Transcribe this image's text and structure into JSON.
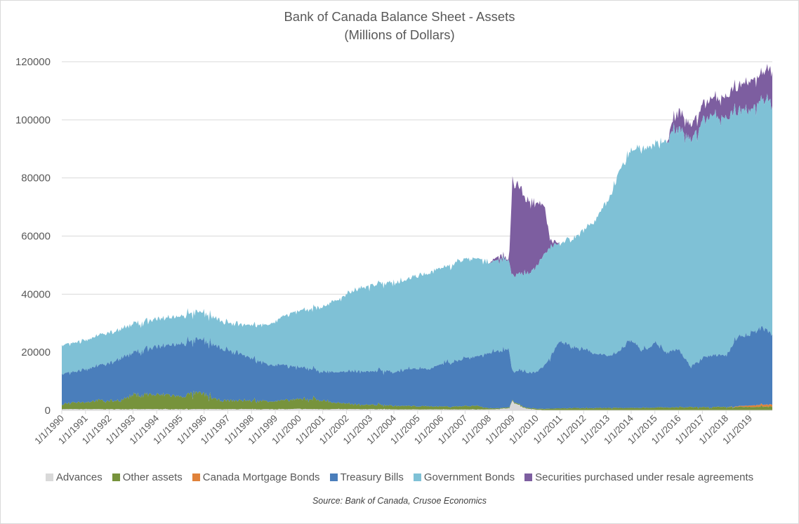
{
  "chart_data": {
    "type": "area",
    "stacked": true,
    "title": "Bank of Canada Balance Sheet - Assets",
    "subtitle": "(Millions of Dollars)",
    "xlabel": "",
    "ylabel": "",
    "ylim": [
      0,
      120000
    ],
    "yticks": [
      0,
      20000,
      40000,
      60000,
      80000,
      100000,
      120000
    ],
    "ytick_labels": [
      "0",
      "20000",
      "40000",
      "60000",
      "80000",
      "100000",
      "120000"
    ],
    "xlim": [
      1990.0,
      2019.95
    ],
    "xtick_labels": [
      "1/1/1990",
      "1/1/1991",
      "1/1/1992",
      "1/1/1993",
      "1/1/1994",
      "1/1/1995",
      "1/1/1996",
      "1/1/1997",
      "1/1/1998",
      "1/1/1999",
      "1/1/2000",
      "1/1/2001",
      "1/1/2002",
      "1/1/2003",
      "1/1/2004",
      "1/1/2005",
      "1/1/2006",
      "1/1/2007",
      "1/1/2008",
      "1/1/2009",
      "1/1/2010",
      "1/1/2011",
      "1/1/2012",
      "1/1/2013",
      "1/1/2014",
      "1/1/2015",
      "1/1/2016",
      "1/1/2017",
      "1/1/2018",
      "1/1/2019"
    ],
    "grid": true,
    "legend_position": "bottom",
    "x": [
      1990.0,
      1990.5,
      1991.0,
      1991.5,
      1992.0,
      1992.5,
      1993.0,
      1993.5,
      1994.0,
      1994.5,
      1995.0,
      1995.5,
      1996.0,
      1996.5,
      1997.0,
      1997.5,
      1998.0,
      1998.5,
      1999.0,
      1999.5,
      2000.0,
      2000.5,
      2001.0,
      2001.5,
      2002.0,
      2002.5,
      2003.0,
      2003.5,
      2004.0,
      2004.5,
      2005.0,
      2005.5,
      2006.0,
      2006.5,
      2007.0,
      2007.5,
      2008.0,
      2008.5,
      2008.85,
      2009.0,
      2009.3,
      2009.6,
      2010.0,
      2010.3,
      2010.6,
      2011.0,
      2011.5,
      2012.0,
      2012.5,
      2013.0,
      2013.5,
      2014.0,
      2014.5,
      2015.0,
      2015.5,
      2015.8,
      2016.0,
      2016.5,
      2017.0,
      2017.5,
      2018.0,
      2018.5,
      2019.0,
      2019.5,
      2019.95
    ],
    "series": [
      {
        "name": "Advances",
        "color": "#d9d9d9",
        "values": [
          400,
          400,
          400,
          400,
          400,
          400,
          400,
          400,
          400,
          400,
          400,
          400,
          400,
          400,
          400,
          400,
          400,
          400,
          400,
          400,
          500,
          400,
          400,
          400,
          400,
          400,
          400,
          400,
          300,
          300,
          300,
          300,
          300,
          300,
          300,
          300,
          300,
          500,
          800,
          3000,
          1500,
          600,
          200,
          100,
          100,
          50,
          50,
          50,
          50,
          50,
          50,
          50,
          50,
          50,
          50,
          50,
          50,
          50,
          50,
          50,
          50,
          50,
          50,
          50,
          50
        ]
      },
      {
        "name": "Other assets",
        "color": "#77933c",
        "values": [
          1800,
          2500,
          2400,
          3000,
          2800,
          3200,
          4800,
          5200,
          4800,
          5000,
          4200,
          5500,
          5200,
          3200,
          2900,
          3000,
          2800,
          2900,
          2800,
          3000,
          3200,
          3600,
          3000,
          2200,
          1800,
          1600,
          1500,
          1500,
          1200,
          1200,
          1100,
          1100,
          1000,
          1000,
          1200,
          1300,
          400,
          300,
          300,
          300,
          300,
          300,
          350,
          400,
          500,
          600,
          700,
          700,
          750,
          800,
          800,
          850,
          850,
          900,
          900,
          950,
          950,
          1000,
          1000,
          1050,
          1050,
          1100,
          1100,
          1150,
          1200
        ]
      },
      {
        "name": "Canada Mortgage Bonds",
        "color": "#e0823a",
        "values": [
          0,
          0,
          0,
          0,
          0,
          0,
          0,
          0,
          0,
          0,
          0,
          0,
          0,
          0,
          0,
          0,
          0,
          0,
          0,
          0,
          0,
          0,
          0,
          0,
          0,
          0,
          0,
          0,
          0,
          0,
          0,
          0,
          0,
          0,
          0,
          0,
          0,
          0,
          0,
          0,
          0,
          0,
          0,
          0,
          0,
          0,
          0,
          0,
          0,
          0,
          0,
          0,
          0,
          0,
          0,
          0,
          0,
          0,
          0,
          0,
          0,
          200,
          500,
          700,
          700
        ]
      },
      {
        "name": "Treasury Bills",
        "color": "#4a7ebb",
        "values": [
          10500,
          10500,
          11500,
          11800,
          13000,
          14500,
          14500,
          15500,
          16500,
          17000,
          18000,
          18200,
          18500,
          18500,
          17500,
          16000,
          14500,
          13000,
          12500,
          11800,
          11000,
          10500,
          9800,
          10500,
          11000,
          11500,
          11500,
          12000,
          11500,
          12500,
          13000,
          13000,
          14500,
          15500,
          16500,
          17000,
          19000,
          19500,
          20000,
          10000,
          12000,
          12000,
          12500,
          14500,
          18000,
          23500,
          21000,
          20500,
          18500,
          18000,
          19500,
          23500,
          19500,
          22500,
          19000,
          20000,
          20000,
          14000,
          17000,
          18000,
          17500,
          24000,
          24500,
          26500,
          24000
        ]
      },
      {
        "name": "Government Bonds",
        "color": "#7fc1d6",
        "values": [
          10000,
          10000,
          10000,
          10500,
          10500,
          10000,
          10000,
          9500,
          9500,
          9500,
          9500,
          9500,
          9500,
          9500,
          9500,
          10000,
          11500,
          13000,
          15000,
          17500,
          19500,
          20500,
          22500,
          24500,
          26500,
          28500,
          29500,
          30000,
          30500,
          31000,
          32000,
          33000,
          33000,
          33500,
          34000,
          34000,
          31000,
          31000,
          31000,
          33000,
          33000,
          34000,
          36000,
          38000,
          38000,
          33500,
          37000,
          41000,
          46000,
          53000,
          62000,
          65000,
          70000,
          68000,
          73000,
          75000,
          76000,
          78000,
          81000,
          83000,
          82000,
          78000,
          77000,
          79000,
          79000
        ]
      },
      {
        "name": "Securities purchased under resale agreements",
        "color": "#7d5ea0",
        "values": [
          0,
          0,
          0,
          0,
          0,
          0,
          0,
          0,
          0,
          0,
          0,
          0,
          0,
          0,
          0,
          0,
          0,
          0,
          0,
          0,
          0,
          0,
          0,
          0,
          0,
          0,
          0,
          0,
          0,
          0,
          0,
          0,
          0,
          0,
          0,
          0,
          0,
          1500,
          0,
          33000,
          30000,
          25000,
          22000,
          18000,
          2000,
          0,
          0,
          0,
          0,
          0,
          0,
          0,
          0,
          0,
          0,
          4000,
          6000,
          5000,
          5500,
          6000,
          7500,
          8500,
          10000,
          9000,
          12000
        ]
      }
    ],
    "annotations": []
  },
  "legend": {
    "items": [
      {
        "label": "Advances",
        "color": "#d9d9d9"
      },
      {
        "label": "Other assets",
        "color": "#77933c"
      },
      {
        "label": "Canada Mortgage Bonds",
        "color": "#e0823a"
      },
      {
        "label": "Treasury Bills",
        "color": "#4a7ebb"
      },
      {
        "label": "Government Bonds",
        "color": "#7fc1d6"
      },
      {
        "label": "Securities purchased under resale agreements",
        "color": "#7d5ea0"
      }
    ]
  },
  "source": "Source:  Bank of Canada, Crusoe Economics"
}
